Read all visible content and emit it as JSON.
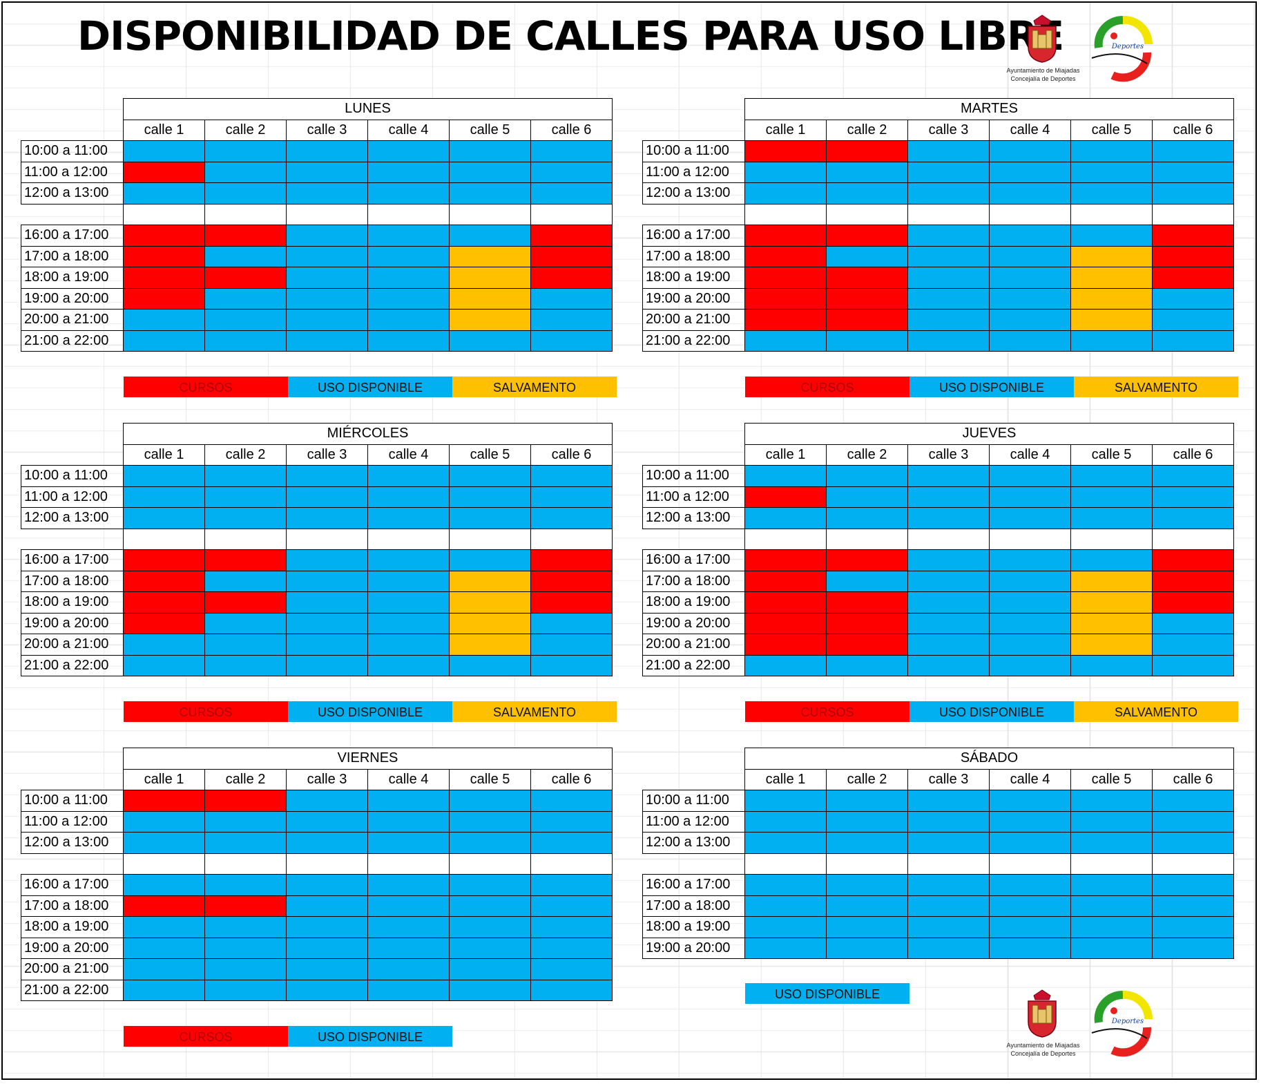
{
  "title": "DISPONIBILIDAD DE CALLES PARA USO LIBRE",
  "logos": {
    "ayuntamiento_caption_1": "Ayuntamiento de Miajadas",
    "ayuntamiento_caption_2": "Concejalía de Deportes",
    "badge_text": "Área de Deportes Miajadas"
  },
  "colors": {
    "cursos": "#ff0000",
    "uso_disponible": "#00b0f0",
    "salvamento": "#ffc000"
  },
  "lanes": [
    "calle 1",
    "calle 2",
    "calle 3",
    "calle 4",
    "calle 5",
    "calle 6"
  ],
  "legend": {
    "cursos": "CURSOS",
    "uso_disponible": "USO DISPONIBLE",
    "salvamento": "SALVAMENTO"
  },
  "days": [
    {
      "name": "LUNES",
      "slots": [
        {
          "time": "10:00 a 11:00",
          "lanes": [
            "B",
            "B",
            "B",
            "B",
            "B",
            "B"
          ]
        },
        {
          "time": "11:00 a 12:00",
          "lanes": [
            "R",
            "B",
            "B",
            "B",
            "B",
            "B"
          ]
        },
        {
          "time": "12:00 a 13:00",
          "lanes": [
            "B",
            "B",
            "B",
            "B",
            "B",
            "B"
          ]
        },
        {
          "time": "",
          "lanes": [
            "W",
            "W",
            "W",
            "W",
            "W",
            "W"
          ]
        },
        {
          "time": "16:00 a 17:00",
          "lanes": [
            "R",
            "R",
            "B",
            "B",
            "B",
            "R"
          ]
        },
        {
          "time": "17:00 a 18:00",
          "lanes": [
            "R",
            "B",
            "B",
            "B",
            "Y",
            "R"
          ]
        },
        {
          "time": "18:00 a 19:00",
          "lanes": [
            "R",
            "R",
            "B",
            "B",
            "Y",
            "R"
          ]
        },
        {
          "time": "19:00 a 20:00",
          "lanes": [
            "R",
            "B",
            "B",
            "B",
            "Y",
            "B"
          ]
        },
        {
          "time": "20:00 a 21:00",
          "lanes": [
            "B",
            "B",
            "B",
            "B",
            "Y",
            "B"
          ]
        },
        {
          "time": "21:00 a 22:00",
          "lanes": [
            "B",
            "B",
            "B",
            "B",
            "B",
            "B"
          ]
        }
      ],
      "legend": [
        "cursos",
        "uso_disponible",
        "salvamento"
      ]
    },
    {
      "name": "MARTES",
      "slots": [
        {
          "time": "10:00 a 11:00",
          "lanes": [
            "R",
            "R",
            "B",
            "B",
            "B",
            "B"
          ]
        },
        {
          "time": "11:00 a 12:00",
          "lanes": [
            "B",
            "B",
            "B",
            "B",
            "B",
            "B"
          ]
        },
        {
          "time": "12:00 a 13:00",
          "lanes": [
            "B",
            "B",
            "B",
            "B",
            "B",
            "B"
          ]
        },
        {
          "time": "",
          "lanes": [
            "W",
            "W",
            "W",
            "W",
            "W",
            "W"
          ]
        },
        {
          "time": "16:00 a 17:00",
          "lanes": [
            "R",
            "R",
            "B",
            "B",
            "B",
            "R"
          ]
        },
        {
          "time": "17:00 a 18:00",
          "lanes": [
            "R",
            "B",
            "B",
            "B",
            "Y",
            "R"
          ]
        },
        {
          "time": "18:00 a 19:00",
          "lanes": [
            "R",
            "R",
            "B",
            "B",
            "Y",
            "R"
          ]
        },
        {
          "time": "19:00 a 20:00",
          "lanes": [
            "R",
            "R",
            "B",
            "B",
            "Y",
            "B"
          ]
        },
        {
          "time": "20:00 a 21:00",
          "lanes": [
            "R",
            "R",
            "B",
            "B",
            "Y",
            "B"
          ]
        },
        {
          "time": "21:00 a 22:00",
          "lanes": [
            "B",
            "B",
            "B",
            "B",
            "B",
            "B"
          ]
        }
      ],
      "legend": [
        "cursos",
        "uso_disponible",
        "salvamento"
      ]
    },
    {
      "name": "MIÉRCOLES",
      "slots": [
        {
          "time": "10:00 a 11:00",
          "lanes": [
            "B",
            "B",
            "B",
            "B",
            "B",
            "B"
          ]
        },
        {
          "time": "11:00 a 12:00",
          "lanes": [
            "B",
            "B",
            "B",
            "B",
            "B",
            "B"
          ]
        },
        {
          "time": "12:00 a 13:00",
          "lanes": [
            "B",
            "B",
            "B",
            "B",
            "B",
            "B"
          ]
        },
        {
          "time": "",
          "lanes": [
            "W",
            "W",
            "W",
            "W",
            "W",
            "W"
          ]
        },
        {
          "time": "16:00 a 17:00",
          "lanes": [
            "R",
            "R",
            "B",
            "B",
            "B",
            "R"
          ]
        },
        {
          "time": "17:00 a 18:00",
          "lanes": [
            "R",
            "B",
            "B",
            "B",
            "Y",
            "R"
          ]
        },
        {
          "time": "18:00 a 19:00",
          "lanes": [
            "R",
            "R",
            "B",
            "B",
            "Y",
            "R"
          ]
        },
        {
          "time": "19:00 a 20:00",
          "lanes": [
            "R",
            "B",
            "B",
            "B",
            "Y",
            "B"
          ]
        },
        {
          "time": "20:00 a 21:00",
          "lanes": [
            "B",
            "B",
            "B",
            "B",
            "Y",
            "B"
          ]
        },
        {
          "time": "21:00 a 22:00",
          "lanes": [
            "B",
            "B",
            "B",
            "B",
            "B",
            "B"
          ]
        }
      ],
      "legend": [
        "cursos",
        "uso_disponible",
        "salvamento"
      ]
    },
    {
      "name": "JUEVES",
      "slots": [
        {
          "time": "10:00 a 11:00",
          "lanes": [
            "B",
            "B",
            "B",
            "B",
            "B",
            "B"
          ]
        },
        {
          "time": "11:00 a 12:00",
          "lanes": [
            "R",
            "B",
            "B",
            "B",
            "B",
            "B"
          ]
        },
        {
          "time": "12:00 a 13:00",
          "lanes": [
            "B",
            "B",
            "B",
            "B",
            "B",
            "B"
          ]
        },
        {
          "time": "",
          "lanes": [
            "W",
            "W",
            "W",
            "W",
            "W",
            "W"
          ]
        },
        {
          "time": "16:00 a 17:00",
          "lanes": [
            "R",
            "R",
            "B",
            "B",
            "B",
            "R"
          ]
        },
        {
          "time": "17:00 a 18:00",
          "lanes": [
            "R",
            "B",
            "B",
            "B",
            "Y",
            "R"
          ]
        },
        {
          "time": "18:00 a 19:00",
          "lanes": [
            "R",
            "R",
            "B",
            "B",
            "Y",
            "R"
          ]
        },
        {
          "time": "19:00 a 20:00",
          "lanes": [
            "R",
            "R",
            "B",
            "B",
            "Y",
            "B"
          ]
        },
        {
          "time": "20:00 a 21:00",
          "lanes": [
            "R",
            "R",
            "B",
            "B",
            "Y",
            "B"
          ]
        },
        {
          "time": "21:00 a 22:00",
          "lanes": [
            "B",
            "B",
            "B",
            "B",
            "B",
            "B"
          ]
        }
      ],
      "legend": [
        "cursos",
        "uso_disponible",
        "salvamento"
      ]
    },
    {
      "name": "VIERNES",
      "slots": [
        {
          "time": "10:00 a 11:00",
          "lanes": [
            "R",
            "R",
            "B",
            "B",
            "B",
            "B"
          ]
        },
        {
          "time": "11:00 a 12:00",
          "lanes": [
            "B",
            "B",
            "B",
            "B",
            "B",
            "B"
          ]
        },
        {
          "time": "12:00 a 13:00",
          "lanes": [
            "B",
            "B",
            "B",
            "B",
            "B",
            "B"
          ]
        },
        {
          "time": "",
          "lanes": [
            "W",
            "W",
            "W",
            "W",
            "W",
            "W"
          ]
        },
        {
          "time": "16:00 a 17:00",
          "lanes": [
            "B",
            "B",
            "B",
            "B",
            "B",
            "B"
          ]
        },
        {
          "time": "17:00 a 18:00",
          "lanes": [
            "R",
            "R",
            "B",
            "B",
            "B",
            "B"
          ]
        },
        {
          "time": "18:00 a 19:00",
          "lanes": [
            "B",
            "B",
            "B",
            "B",
            "B",
            "B"
          ]
        },
        {
          "time": "19:00 a 20:00",
          "lanes": [
            "B",
            "B",
            "B",
            "B",
            "B",
            "B"
          ]
        },
        {
          "time": "20:00 a 21:00",
          "lanes": [
            "B",
            "B",
            "B",
            "B",
            "B",
            "B"
          ]
        },
        {
          "time": "21:00 a 22:00",
          "lanes": [
            "B",
            "B",
            "B",
            "B",
            "B",
            "B"
          ]
        }
      ],
      "legend": [
        "cursos",
        "uso_disponible"
      ]
    },
    {
      "name": "SÁBADO",
      "slots": [
        {
          "time": "10:00 a 11:00",
          "lanes": [
            "B",
            "B",
            "B",
            "B",
            "B",
            "B"
          ]
        },
        {
          "time": "11:00 a 12:00",
          "lanes": [
            "B",
            "B",
            "B",
            "B",
            "B",
            "B"
          ]
        },
        {
          "time": "12:00 a 13:00",
          "lanes": [
            "B",
            "B",
            "B",
            "B",
            "B",
            "B"
          ]
        },
        {
          "time": "",
          "lanes": [
            "W",
            "W",
            "W",
            "W",
            "W",
            "W"
          ]
        },
        {
          "time": "16:00 a 17:00",
          "lanes": [
            "B",
            "B",
            "B",
            "B",
            "B",
            "B"
          ]
        },
        {
          "time": "17:00 a 18:00",
          "lanes": [
            "B",
            "B",
            "B",
            "B",
            "B",
            "B"
          ]
        },
        {
          "time": "18:00 a 19:00",
          "lanes": [
            "B",
            "B",
            "B",
            "B",
            "B",
            "B"
          ]
        },
        {
          "time": "19:00 a 20:00",
          "lanes": [
            "B",
            "B",
            "B",
            "B",
            "B",
            "B"
          ]
        }
      ],
      "legend": [
        "uso_disponible"
      ]
    }
  ]
}
